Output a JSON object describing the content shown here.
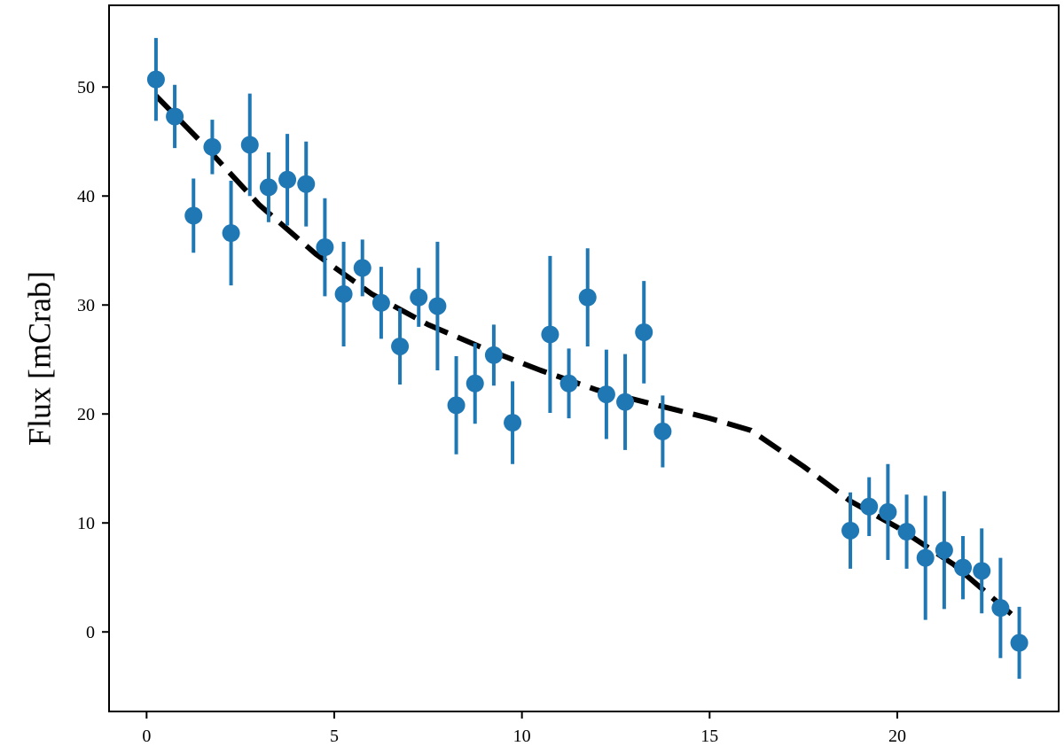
{
  "chart_data": {
    "type": "scatter",
    "title": "",
    "xlabel": "",
    "ylabel": "Flux [mCrab]",
    "xlim": [
      -1,
      24.3
    ],
    "ylim": [
      -7.3,
      57.5
    ],
    "xticks": [
      0,
      5,
      10,
      15,
      20
    ],
    "yticks": [
      0,
      10,
      20,
      30,
      40,
      50
    ],
    "grid": false,
    "legend": "none",
    "series": [
      {
        "kind": "errorbar-points",
        "color": "#1f77b4",
        "points": [
          {
            "x": 0.25,
            "y": 50.7,
            "yerr": 3.8
          },
          {
            "x": 0.75,
            "y": 47.3,
            "yerr": 2.9
          },
          {
            "x": 1.25,
            "y": 38.2,
            "yerr": 3.4
          },
          {
            "x": 1.75,
            "y": 44.5,
            "yerr": 2.5
          },
          {
            "x": 2.25,
            "y": 36.6,
            "yerr": 4.8
          },
          {
            "x": 2.75,
            "y": 44.7,
            "yerr": 4.7
          },
          {
            "x": 3.25,
            "y": 40.8,
            "yerr": 3.2
          },
          {
            "x": 3.75,
            "y": 41.5,
            "yerr": 4.2
          },
          {
            "x": 4.25,
            "y": 41.1,
            "yerr": 3.9
          },
          {
            "x": 4.75,
            "y": 35.3,
            "yerr": 4.5
          },
          {
            "x": 5.25,
            "y": 31.0,
            "yerr": 4.8
          },
          {
            "x": 5.75,
            "y": 33.4,
            "yerr": 2.6
          },
          {
            "x": 6.25,
            "y": 30.2,
            "yerr": 3.3
          },
          {
            "x": 6.75,
            "y": 26.2,
            "yerr": 3.5
          },
          {
            "x": 7.25,
            "y": 30.7,
            "yerr": 2.7
          },
          {
            "x": 7.75,
            "y": 29.9,
            "yerr": 5.9
          },
          {
            "x": 8.25,
            "y": 20.8,
            "yerr": 4.5
          },
          {
            "x": 8.75,
            "y": 22.8,
            "yerr": 3.7
          },
          {
            "x": 9.25,
            "y": 25.4,
            "yerr": 2.8
          },
          {
            "x": 9.75,
            "y": 19.2,
            "yerr": 3.8
          },
          {
            "x": 10.75,
            "y": 27.3,
            "yerr": 7.2
          },
          {
            "x": 11.25,
            "y": 22.8,
            "yerr": 3.2
          },
          {
            "x": 11.75,
            "y": 30.7,
            "yerr": 4.5
          },
          {
            "x": 12.25,
            "y": 21.8,
            "yerr": 4.1
          },
          {
            "x": 12.75,
            "y": 21.1,
            "yerr": 4.4
          },
          {
            "x": 13.25,
            "y": 27.5,
            "yerr": 4.7
          },
          {
            "x": 13.75,
            "y": 18.4,
            "yerr": 3.3
          },
          {
            "x": 18.75,
            "y": 9.3,
            "yerr": 3.5
          },
          {
            "x": 19.25,
            "y": 11.5,
            "yerr": 2.7
          },
          {
            "x": 19.75,
            "y": 11.0,
            "yerr": 4.4
          },
          {
            "x": 20.25,
            "y": 9.2,
            "yerr": 3.4
          },
          {
            "x": 20.75,
            "y": 6.8,
            "yerr": 5.7
          },
          {
            "x": 21.25,
            "y": 7.5,
            "yerr": 5.4
          },
          {
            "x": 21.75,
            "y": 5.9,
            "yerr": 2.9
          },
          {
            "x": 22.25,
            "y": 5.6,
            "yerr": 3.9
          },
          {
            "x": 22.75,
            "y": 2.2,
            "yerr": 4.6
          },
          {
            "x": 23.25,
            "y": -1.0,
            "yerr": 3.3
          }
        ]
      },
      {
        "kind": "model-line",
        "color": "#000000",
        "style": "dashed",
        "x": [
          0.25,
          1.5,
          3.0,
          4.5,
          6.0,
          7.5,
          9.0,
          10.5,
          12.0,
          13.5,
          15.0,
          16.1,
          17.5,
          18.75,
          20.0,
          21.5,
          23.25
        ],
        "y": [
          49.2,
          44.8,
          39.2,
          34.7,
          31.0,
          28.2,
          26.0,
          24.0,
          22.2,
          20.9,
          19.6,
          18.5,
          15.2,
          12.0,
          9.6,
          6.2,
          1.0
        ]
      }
    ]
  }
}
